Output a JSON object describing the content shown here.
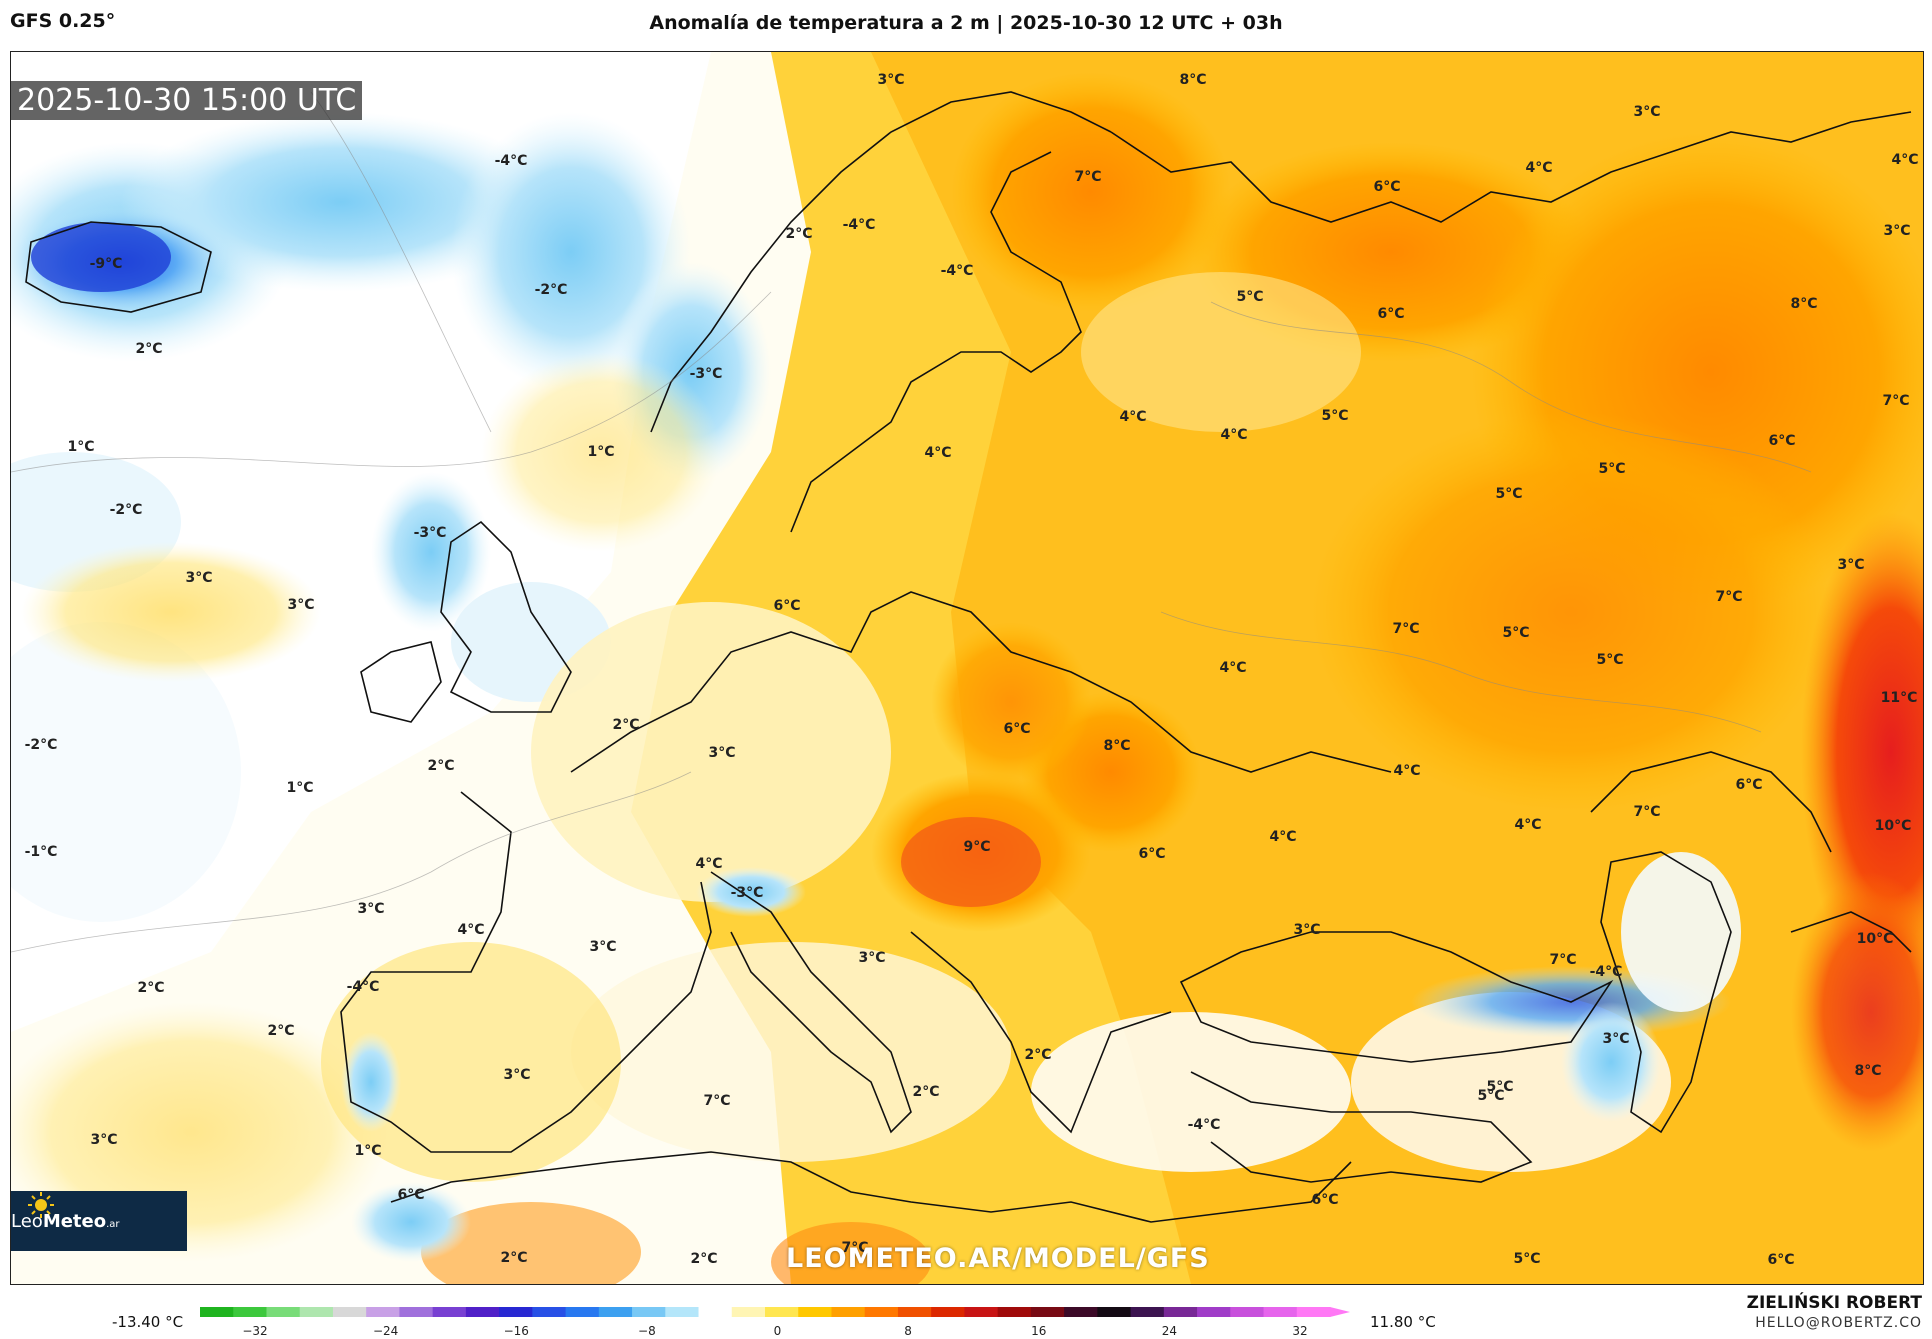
{
  "header": {
    "model": "GFS 0.25°",
    "title": "Anomalía de temperatura a 2 m | 2025-10-30 12 UTC + 03h"
  },
  "map": {
    "valid_time": "2025-10-30 15:00 UTC",
    "watermark": "LEOMETEO.AR/MODEL/GFS",
    "logo": {
      "brand_light": "Leo",
      "brand_bold": "Meteo",
      "suffix": ".ar"
    },
    "labels": [
      "3°C",
      "8°C",
      "3°C",
      "-4°C",
      "-9°C",
      "-4°C",
      "2°C",
      "-2°C",
      "2°C",
      "7°C",
      "4°C",
      "6°C",
      "4°C",
      "3°C",
      "-4°C",
      "-3°C",
      "5°C",
      "6°C",
      "8°C",
      "1°C",
      "1°C",
      "4°C",
      "4°C",
      "5°C",
      "4°C",
      "6°C",
      "7°C",
      "5°C",
      "-2°C",
      "-3°C",
      "3°C",
      "5°C",
      "3°C",
      "7°C",
      "7°C",
      "3°C",
      "6°C",
      "5°C",
      "5°C",
      "4°C",
      "2°C",
      "11°C",
      "-2°C",
      "6°C",
      "3°C",
      "8°C",
      "2°C",
      "4°C",
      "6°C",
      "1°C",
      "7°C",
      "4°C",
      "-1°C",
      "4°C",
      "9°C",
      "6°C",
      "4°C",
      "10°C",
      "-3°C",
      "3°C",
      "4°C",
      "3°C",
      "3°C",
      "3°C",
      "10°C",
      "-4°C",
      "7°C",
      "2°C",
      "2°C",
      "2°C",
      "-4°C",
      "3°C",
      "5°C",
      "3°C",
      "8°C",
      "7°C",
      "2°C",
      "5°C",
      "3°C",
      "1°C",
      "-4°C",
      "6°C",
      "6°C",
      "2°C",
      "7°C",
      "2°C",
      "5°C",
      "6°C"
    ]
  },
  "colorbar": {
    "min_label": "-13.40 °C",
    "max_label": "11.80 °C",
    "ticks": [
      "−32",
      "−24",
      "−16",
      "−8",
      "0",
      "8",
      "16",
      "24",
      "32"
    ],
    "colors": [
      "#1fb41f",
      "#3cc83c",
      "#78dc78",
      "#aee6ae",
      "#d8d8d8",
      "#c8a0e6",
      "#a070dc",
      "#7840d2",
      "#5020c8",
      "#2828d2",
      "#2850e6",
      "#2878f0",
      "#3ca0f0",
      "#78c8f5",
      "#b4e6fa",
      "#ffffff",
      "#fff5b4",
      "#ffe650",
      "#ffc800",
      "#ffa000",
      "#ff7800",
      "#f05000",
      "#dc2800",
      "#c81414",
      "#a00a0a",
      "#780a14",
      "#3c0a28",
      "#140a14",
      "#3c1450",
      "#782896",
      "#a03cc8",
      "#c850dc",
      "#e664ec",
      "#ff78f5"
    ]
  },
  "footer": {
    "author": "ZIELIŃSKI ROBERT",
    "email": "HELLO@ROBERTZ.CO"
  }
}
